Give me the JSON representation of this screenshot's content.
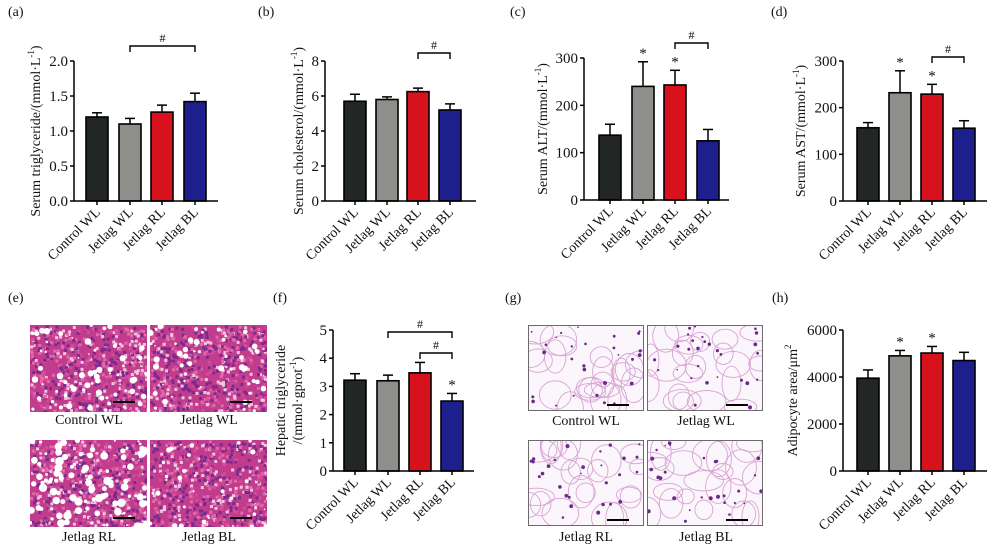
{
  "figure": {
    "panel_labels": [
      "(a)",
      "(b)",
      "(c)",
      "(d)",
      "(e)",
      "(f)",
      "(g)",
      "(h)"
    ],
    "groups": [
      "Control WL",
      "Jetlag WL",
      "Jetlag RL",
      "Jetlag BL"
    ],
    "group_colors": [
      "#222624",
      "#8e8f8a",
      "#d8121c",
      "#1c1f8c"
    ]
  },
  "histology": {
    "liver": {
      "panel": "(e)",
      "captions": [
        "Control WL",
        "Jetlag WL",
        "Jetlag RL",
        "Jetlag BL"
      ]
    },
    "adipose": {
      "panel": "(g)",
      "captions": [
        "Control WL",
        "Jetlag WL",
        "Jetlag RL",
        "Jetlag BL"
      ]
    }
  },
  "chart_data": [
    {
      "id": "a",
      "panel": "(a)",
      "type": "bar",
      "categories": [
        "Control WL",
        "Jetlag WL",
        "Jetlag RL",
        "Jetlag BL"
      ],
      "values": [
        1.2,
        1.1,
        1.27,
        1.42
      ],
      "errors": [
        0.06,
        0.08,
        0.1,
        0.12
      ],
      "ylabel": "Serum triglyceride/(mmol·L⁻¹)",
      "ylabel_main": "Serum triglyceride/(mmol·L",
      "ylabel_sup": "-1",
      "ylabel_tail": ")",
      "ylim": [
        0,
        2.0
      ],
      "yticks": [
        "0.0",
        "0.5",
        "1.0",
        "1.5",
        "2.0"
      ],
      "ytick_values": [
        0,
        0.5,
        1.0,
        1.5,
        2.0
      ],
      "stars": [],
      "brackets": [
        {
          "from": 1,
          "to": 3,
          "symbol": "#"
        }
      ]
    },
    {
      "id": "b",
      "panel": "(b)",
      "type": "bar",
      "categories": [
        "Control WL",
        "Jetlag WL",
        "Jetlag RL",
        "Jetlag BL"
      ],
      "values": [
        5.7,
        5.8,
        6.25,
        5.2
      ],
      "errors": [
        0.4,
        0.15,
        0.2,
        0.35
      ],
      "ylabel": "Serum cholesterol/(mmol·L⁻¹)",
      "ylabel_main": "Serum cholesterol/(mmol·L",
      "ylabel_sup": "-1",
      "ylabel_tail": ")",
      "ylim": [
        0,
        8
      ],
      "yticks": [
        "0",
        "2",
        "4",
        "6",
        "8"
      ],
      "ytick_values": [
        0,
        2,
        4,
        6,
        8
      ],
      "stars": [],
      "brackets": [
        {
          "from": 2,
          "to": 3,
          "symbol": "#"
        }
      ]
    },
    {
      "id": "c",
      "panel": "(c)",
      "type": "bar",
      "categories": [
        "Control WL",
        "Jetlag WL",
        "Jetlag RL",
        "Jetlag BL"
      ],
      "values": [
        137,
        240,
        243,
        125
      ],
      "errors": [
        23,
        52,
        31,
        24
      ],
      "ylabel": "Serum ALT/(mmol·L⁻¹)",
      "ylabel_main": "Serum ALT/(mmol·L",
      "ylabel_sup": "-1",
      "ylabel_tail": ")",
      "ylim": [
        0,
        300
      ],
      "yticks": [
        "0",
        "100",
        "200",
        "300"
      ],
      "ytick_values": [
        0,
        100,
        200,
        300
      ],
      "stars": [
        1,
        2
      ],
      "star_symbol": "*",
      "brackets": [
        {
          "from": 2,
          "to": 3,
          "symbol": "#"
        }
      ]
    },
    {
      "id": "d",
      "panel": "(d)",
      "type": "bar",
      "categories": [
        "Control WL",
        "Jetlag WL",
        "Jetlag RL",
        "Jetlag BL"
      ],
      "values": [
        157,
        232,
        229,
        156
      ],
      "errors": [
        11,
        47,
        21,
        16
      ],
      "ylabel": "Serum AST/(mmol·L⁻¹)",
      "ylabel_main": "Serum AST/(mmol·L",
      "ylabel_sup": "-1",
      "ylabel_tail": ")",
      "ylim": [
        0,
        300
      ],
      "yticks": [
        "0",
        "100",
        "200",
        "300"
      ],
      "ytick_values": [
        0,
        100,
        200,
        300
      ],
      "stars": [
        1,
        2
      ],
      "star_symbol": "*",
      "brackets": [
        {
          "from": 2,
          "to": 3,
          "symbol": "#"
        }
      ]
    },
    {
      "id": "f",
      "panel": "(f)",
      "type": "bar",
      "categories": [
        "Control WL",
        "Jetlag WL",
        "Jetlag RL",
        "Jetlag BL"
      ],
      "values": [
        3.22,
        3.2,
        3.48,
        2.48
      ],
      "errors": [
        0.23,
        0.2,
        0.37,
        0.27
      ],
      "ylabel": "Hepatic triglyceride /(mmol·gprot⁻¹)",
      "ylabel_line1": "Hepatic triglyceride",
      "ylabel_main": "/(mmol·gprot",
      "ylabel_sup": "-1",
      "ylabel_tail": ")",
      "ylim": [
        0,
        5
      ],
      "yticks": [
        "0",
        "1",
        "2",
        "3",
        "4",
        "5"
      ],
      "ytick_values": [
        0,
        1,
        2,
        3,
        4,
        5
      ],
      "stars": [
        3
      ],
      "star_symbol": "*",
      "brackets": [
        {
          "from": 1,
          "to": 3,
          "symbol": "#"
        },
        {
          "from": 2,
          "to": 3,
          "symbol": "#"
        }
      ]
    },
    {
      "id": "h",
      "panel": "(h)",
      "type": "bar",
      "categories": [
        "Control WL",
        "Jetlag WL",
        "Jetlag RL",
        "Jetlag BL"
      ],
      "values": [
        3950,
        4900,
        5020,
        4700
      ],
      "errors": [
        350,
        230,
        280,
        350
      ],
      "ylabel": "Adipocyte area/μm²",
      "ylabel_main": "Adipocyte area/μm",
      "ylabel_sup": "2",
      "ylabel_tail": "",
      "ylim": [
        0,
        6000
      ],
      "yticks": [
        "0",
        "2000",
        "4000",
        "6000"
      ],
      "ytick_values": [
        0,
        2000,
        4000,
        6000
      ],
      "stars": [
        1,
        2
      ],
      "star_symbol": "*",
      "brackets": []
    }
  ]
}
